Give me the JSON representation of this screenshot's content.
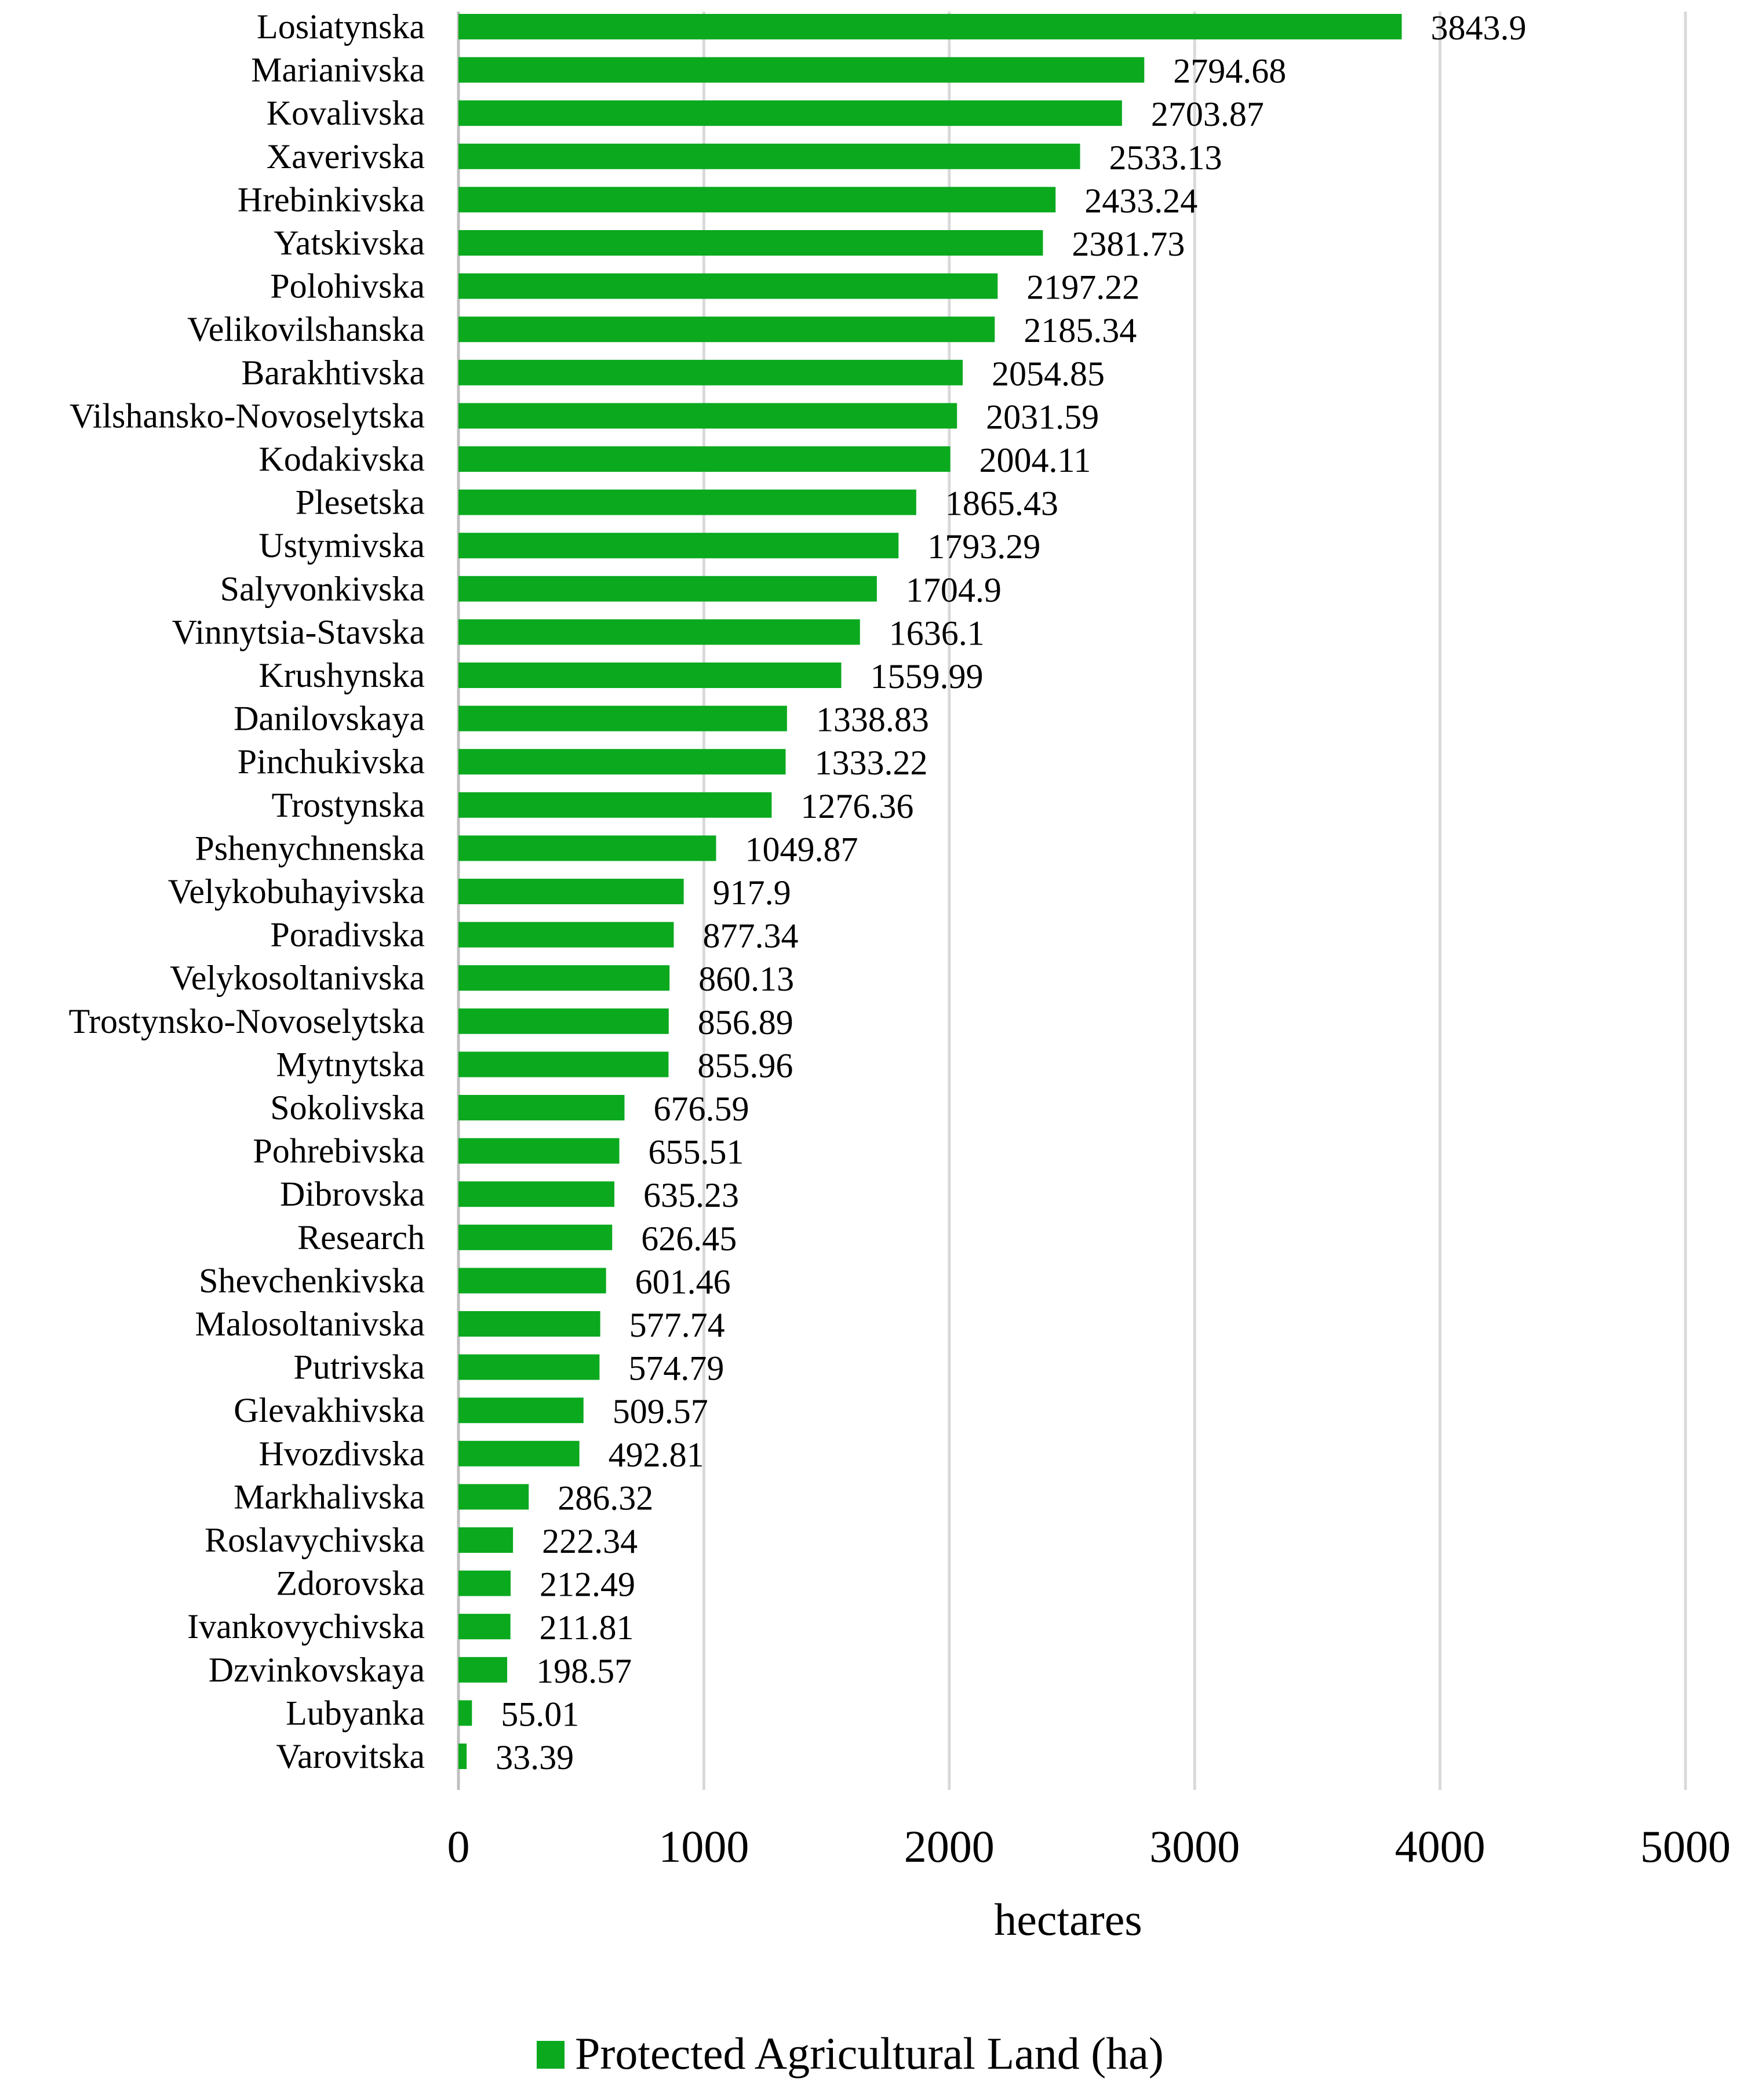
{
  "chart_data": {
    "type": "bar",
    "orientation": "horizontal",
    "title": "",
    "xlabel": "hectares",
    "ylabel": "",
    "xlim": [
      0,
      5000
    ],
    "xticks": [
      0,
      1000,
      2000,
      3000,
      4000,
      5000
    ],
    "grid": true,
    "legend_position": "bottom",
    "bar_color": "#0aa91e",
    "series": [
      {
        "name": "Protected Agricultural Land (ha)",
        "categories": [
          "Losiatynska",
          "Marianivska",
          "Kovalivska",
          "Xaverivska",
          "Hrebinkivska",
          "Yatskivska",
          "Polohivska",
          "Velikovilshanska",
          "Barakhtivska",
          "Vilshansko-Novoselytska",
          "Kodakivska",
          "Plesetska",
          "Ustymivska",
          "Salyvonkivska",
          "Vinnytsia-Stavska",
          "Krushynska",
          "Danilovskaya",
          "Pinchukivska",
          "Trostynska",
          "Pshenychnenska",
          "Velykobuhayivska",
          "Poradivska",
          "Velykosoltanivska",
          "Trostynsko-Novoselytska",
          "Mytnytska",
          "Sokolivska",
          "Pohrebivska",
          "Dibrovska",
          "Research",
          "Shevchenkivska",
          "Malosoltanivska",
          "Putrivska",
          "Glevakhivska",
          "Hvozdivska",
          "Markhalivska",
          "Roslavychivska",
          "Zdorovska",
          "Ivankovychivska",
          "Dzvinkovskaya",
          "Lubyanka",
          "Varovitska"
        ],
        "values": [
          3843.9,
          2794.68,
          2703.87,
          2533.13,
          2433.24,
          2381.73,
          2197.22,
          2185.34,
          2054.85,
          2031.59,
          2004.11,
          1865.43,
          1793.29,
          1704.9,
          1636.1,
          1559.99,
          1338.83,
          1333.22,
          1276.36,
          1049.87,
          917.9,
          877.34,
          860.13,
          856.89,
          855.96,
          676.59,
          655.51,
          635.23,
          626.45,
          601.46,
          577.74,
          574.79,
          509.57,
          492.81,
          286.32,
          222.34,
          212.49,
          211.81,
          198.57,
          55.01,
          33.39
        ],
        "value_labels": [
          "3843.9",
          "2794.68",
          "2703.87",
          "2533.13",
          "2433.24",
          "2381.73",
          "2197.22",
          "2185.34",
          "2054.85",
          "2031.59",
          "2004.11",
          "1865.43",
          "1793.29",
          "1704.9",
          "1636.1",
          "1559.99",
          "1338.83",
          "1333.22",
          "1276.36",
          "1049.87",
          "917.9",
          "877.34",
          "860.13",
          "856.89",
          "855.96",
          "676.59",
          "655.51",
          "635.23",
          "626.45",
          "601.46",
          "577.74",
          "574.79",
          "509.57",
          "492.81",
          "286.32",
          "222.34",
          "212.49",
          "211.81",
          "198.57",
          "55.01",
          "33.39"
        ]
      }
    ]
  }
}
